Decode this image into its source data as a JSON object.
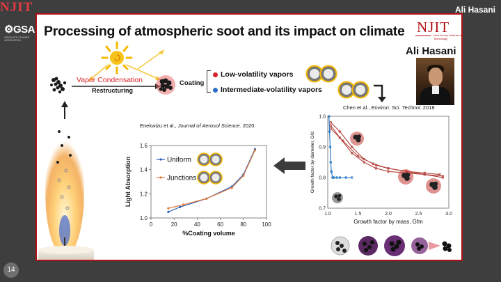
{
  "header": {
    "logo_text": "NJIT",
    "presenter_name": "Ali Hasani"
  },
  "side_logo": {
    "word": "GSA",
    "subtitle": "GRADUATE STUDENT ASSOCIATION"
  },
  "slide_number": "14",
  "slide": {
    "title": "Processing of atmospheric soot and its impact on climate",
    "njit_logo": "NJIT",
    "njit_subtitle": "New Jersey Institute of Technology",
    "presenter": "Ali Hasani",
    "process": {
      "step1": "Vapor Condensation",
      "step2": "Restructuring",
      "coating": "Coating"
    },
    "vapors": {
      "low": "Low-volatility vapors",
      "intermediate": "Intermediate-volatility vapors"
    },
    "colors": {
      "accent_red": "#d9232a",
      "blue_dot": "#2f6ec7",
      "frame": "#b01116",
      "series_uniform": "#2f5fb8",
      "series_junctions": "#e07b39",
      "growth_red": "#b5453f",
      "growth_blue": "#1c70c0"
    },
    "icons": [
      "sun-icon",
      "soot-particle-icon",
      "candle-flame-icon",
      "coated-particle-icon",
      "arrow-icon"
    ]
  },
  "chart_left": {
    "citation_author": "Enekwizu et al., ",
    "citation_journal": "Journal of Aerosol Science.",
    "citation_year": " 2020",
    "legend_uniform": "Uniform",
    "legend_junctions": "Junctions",
    "chart_data": {
      "type": "line",
      "xlabel": "%Coating volume",
      "ylabel": "Light Absorption",
      "xlim": [
        0,
        100
      ],
      "ylim": [
        1.0,
        1.6
      ],
      "xticks": [
        "0",
        "20",
        "40",
        "60",
        "80",
        "100"
      ],
      "yticks": [
        "1.0",
        "1.2",
        "1.4",
        "1.6"
      ],
      "series": [
        {
          "name": "Uniform",
          "x": [
            15,
            25,
            48,
            70,
            80,
            90
          ],
          "y": [
            1.05,
            1.09,
            1.16,
            1.26,
            1.36,
            1.57
          ]
        },
        {
          "name": "Junctions",
          "x": [
            15,
            28,
            48,
            70,
            80,
            90
          ],
          "y": [
            1.08,
            1.11,
            1.16,
            1.25,
            1.35,
            1.56
          ]
        }
      ]
    }
  },
  "chart_right": {
    "citation_author": "Chen et al., ",
    "citation_journal": "Environ. Sci. Technol.",
    "citation_year": " 2018",
    "chart_data": {
      "type": "line",
      "xlabel": "Growth factor by mass, Gfm",
      "ylabel": "Growth factor by diameter, Gfd",
      "xlim": [
        1.0,
        3.0
      ],
      "ylim": [
        0.7,
        1.0
      ],
      "xticks": [
        "1.0",
        "1.5",
        "2.0",
        "2.5",
        "3.0"
      ],
      "yticks": [
        "0.7",
        "0.8",
        "0.9",
        "1.0"
      ],
      "series": [
        {
          "x": [
            1.05,
            1.2,
            1.4,
            1.6,
            1.8,
            2.0,
            2.3,
            2.6,
            2.9
          ],
          "y": [
            0.98,
            0.95,
            0.9,
            0.86,
            0.84,
            0.83,
            0.82,
            0.81,
            0.8
          ]
        },
        {
          "x": [
            1.05,
            1.2,
            1.4,
            1.6,
            1.8,
            2.0,
            2.3,
            2.6,
            2.9
          ],
          "y": [
            0.97,
            0.93,
            0.88,
            0.85,
            0.83,
            0.82,
            0.815,
            0.81,
            0.805
          ]
        },
        {
          "x": [
            1.05,
            1.25,
            1.5,
            1.75,
            2.0,
            2.3,
            2.6,
            2.85
          ],
          "y": [
            0.96,
            0.92,
            0.87,
            0.845,
            0.83,
            0.82,
            0.815,
            0.81
          ]
        },
        {
          "x": [
            1.02,
            1.03,
            1.04,
            1.05,
            1.06,
            1.08,
            1.1,
            1.15,
            1.2,
            1.3,
            1.4
          ],
          "y": [
            1.0,
            0.95,
            0.9,
            0.85,
            0.82,
            0.8,
            0.8,
            0.8,
            0.8,
            0.8,
            0.8
          ]
        }
      ]
    }
  }
}
